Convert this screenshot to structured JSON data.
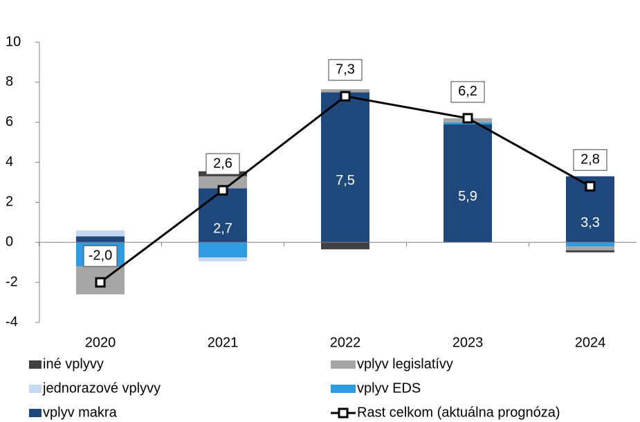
{
  "chart_data": {
    "type": "stacked-bar-line",
    "categories": [
      "2020",
      "2021",
      "2022",
      "2023",
      "2024"
    ],
    "ylim": [
      -4,
      10
    ],
    "yticks": [
      -4,
      -2,
      0,
      2,
      4,
      6,
      8,
      10
    ],
    "series": [
      {
        "name": "iné vplyvy",
        "color": "#404040",
        "values": [
          0,
          0.25,
          -0.35,
          0,
          -0.1
        ]
      },
      {
        "name": "vplyv legislatívy",
        "color": "#a6a6a6",
        "values": [
          -1.4,
          0.6,
          0.15,
          0.2,
          -0.2
        ]
      },
      {
        "name": "jednorazové vplyvy",
        "color": "#c6d9f1",
        "values": [
          0.3,
          -0.2,
          0,
          0,
          0
        ]
      },
      {
        "name": "vplyv EDS",
        "color": "#2e9be0",
        "values": [
          -1.2,
          -0.75,
          0,
          0.1,
          -0.2
        ]
      },
      {
        "name": "vplyv makra",
        "color": "#1f497d",
        "values": [
          0.3,
          2.7,
          7.5,
          5.9,
          3.3
        ],
        "value_labels": [
          null,
          "2,7",
          "7,5",
          "5,9",
          "3,3"
        ]
      },
      {
        "name": "Rast celkom (aktuálna prognóza)",
        "type": "line",
        "color": "#000000",
        "values": [
          -2.0,
          2.6,
          7.3,
          6.2,
          2.8
        ],
        "value_labels": [
          "-2,0",
          "2,6",
          "7,3",
          "6,2",
          "2,8"
        ]
      }
    ]
  }
}
